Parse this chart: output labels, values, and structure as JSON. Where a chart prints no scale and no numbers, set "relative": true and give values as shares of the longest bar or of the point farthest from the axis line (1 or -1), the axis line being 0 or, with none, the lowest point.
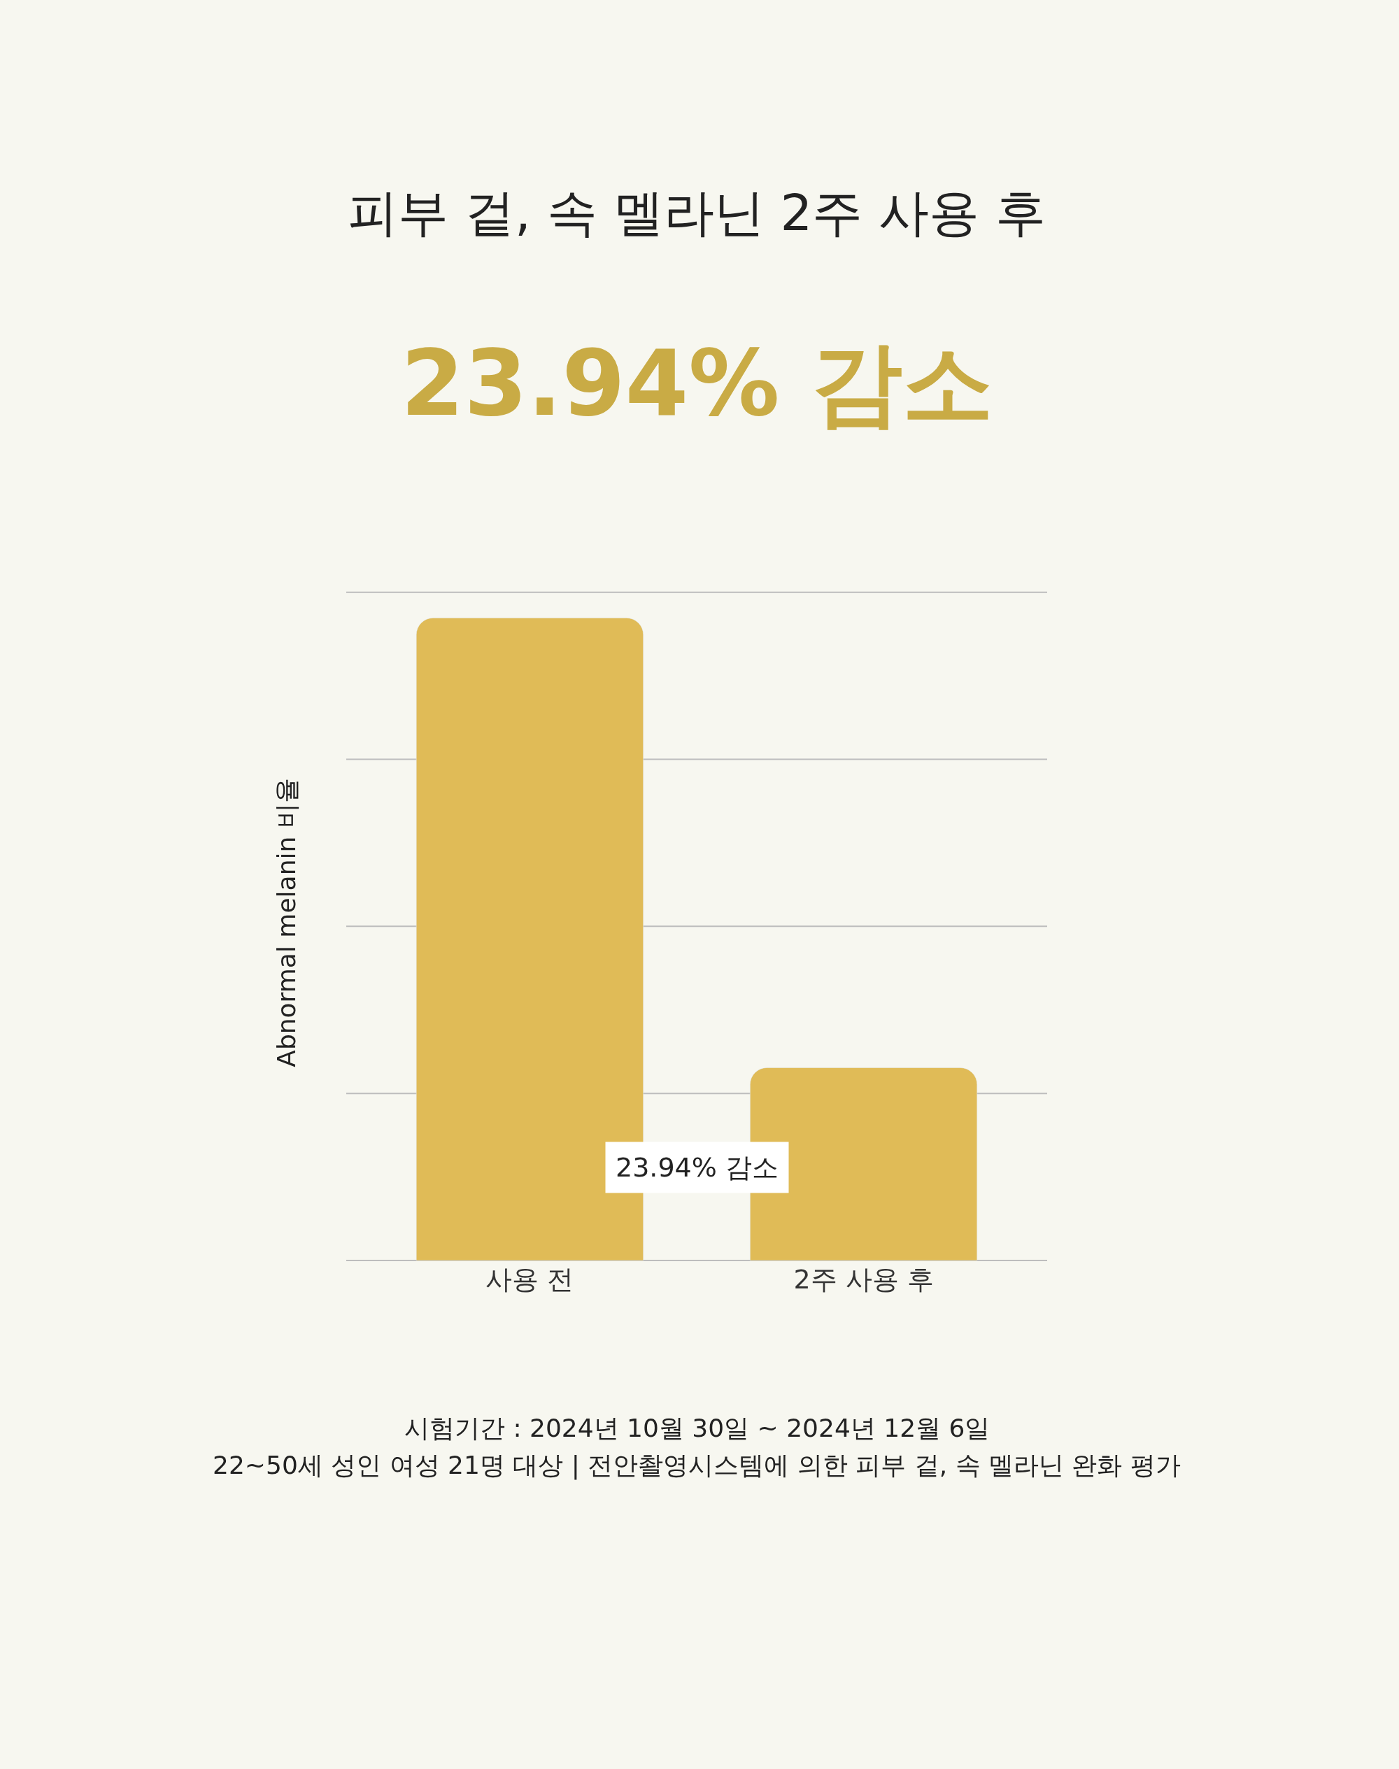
{
  "chart_data": {
    "type": "bar",
    "relative": true,
    "title": "피부 겉, 속 멜라닌 2주 사용 후",
    "subtitle": "23.94% 감소",
    "ylabel": "Abnormal melanin 비율",
    "categories": [
      "사용 전",
      "2주 사용 후"
    ],
    "values": [
      1,
      0.3
    ],
    "color": "#e0bb57",
    "ref_lines": [
      {
        "axis": "y",
        "value": 0,
        "color": "#bdbdbd"
      },
      {
        "axis": "y",
        "value": 0.26,
        "color": "#bdbdbd"
      },
      {
        "axis": "y",
        "value": 0.52,
        "color": "#bdbdbd"
      },
      {
        "axis": "y",
        "value": 0.78,
        "color": "#bdbdbd"
      },
      {
        "axis": "y",
        "value": 1.04,
        "color": "#bdbdbd"
      }
    ],
    "annotations": [
      "23.94% 감소",
      "시험기간 : 2024년 10월 30일 ~ 2024년 12월 6일",
      "22~50세 성인 여성 21명 대상 | 전안촬영시스템에 의한 피부 겉, 속 멜라닌 완화 평가"
    ]
  }
}
